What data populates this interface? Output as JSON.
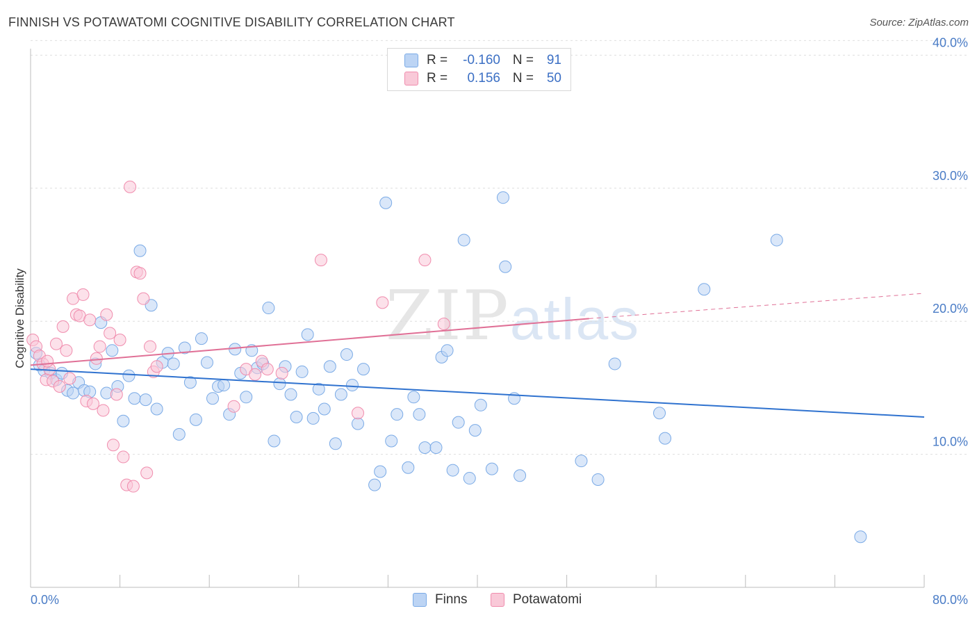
{
  "title": "FINNISH VS POTAWATOMI COGNITIVE DISABILITY CORRELATION CHART",
  "source": "Source: ZipAtlas.com",
  "watermark": {
    "zip": "ZIP",
    "atlas": "atlas"
  },
  "legend": {
    "rows": [
      {
        "r_label": "R =",
        "r_value": "-0.160",
        "n_label": "N =",
        "n_value": "91",
        "color": "#7aaae6"
      },
      {
        "r_label": "R =",
        "r_value": "0.156",
        "n_label": "N =",
        "n_value": "50",
        "color": "#f08cad"
      }
    ]
  },
  "bottom_legend": {
    "series1": "Finns",
    "series2": "Potawatomi"
  },
  "chart_data": {
    "type": "scatter",
    "title": "FINNISH VS POTAWATOMI COGNITIVE DISABILITY CORRELATION CHART",
    "xlabel": "",
    "ylabel": "Cognitive Disability",
    "xlim": [
      0,
      80
    ],
    "ylim": [
      0,
      42
    ],
    "y_ticks": [
      10,
      20,
      30,
      40
    ],
    "y_tick_labels": [
      "10.0%",
      "20.0%",
      "30.0%",
      "40.0%"
    ],
    "x_tick_labels": [
      "0.0%",
      "80.0%"
    ],
    "grid": true,
    "legend_position": "top-center",
    "series": [
      {
        "name": "Finns",
        "color": "#7aaae6",
        "trend": {
          "x": [
            0,
            80
          ],
          "y": [
            16.4,
            12.8
          ],
          "style": "solid"
        },
        "points": [
          [
            0.5,
            17.6
          ],
          [
            0.8,
            16.7
          ],
          [
            1.2,
            16.3
          ],
          [
            1.8,
            16.1
          ],
          [
            2.3,
            15.6
          ],
          [
            2.8,
            16.1
          ],
          [
            3.3,
            14.8
          ],
          [
            3.8,
            14.6
          ],
          [
            4.3,
            15.4
          ],
          [
            4.8,
            14.8
          ],
          [
            5.3,
            14.7
          ],
          [
            5.8,
            16.8
          ],
          [
            6.3,
            19.9
          ],
          [
            6.8,
            14.6
          ],
          [
            7.3,
            17.8
          ],
          [
            7.8,
            15.1
          ],
          [
            8.3,
            12.5
          ],
          [
            8.8,
            15.9
          ],
          [
            9.3,
            14.2
          ],
          [
            9.8,
            25.3
          ],
          [
            10.3,
            14.1
          ],
          [
            10.8,
            21.2
          ],
          [
            11.3,
            13.4
          ],
          [
            11.8,
            16.9
          ],
          [
            12.3,
            17.6
          ],
          [
            12.8,
            16.8
          ],
          [
            13.3,
            11.5
          ],
          [
            13.8,
            18.0
          ],
          [
            14.3,
            15.4
          ],
          [
            14.8,
            12.6
          ],
          [
            15.3,
            18.7
          ],
          [
            15.8,
            16.9
          ],
          [
            16.3,
            14.2
          ],
          [
            16.8,
            15.1
          ],
          [
            17.3,
            15.2
          ],
          [
            17.8,
            13.0
          ],
          [
            18.3,
            17.9
          ],
          [
            18.8,
            16.1
          ],
          [
            19.3,
            14.3
          ],
          [
            19.8,
            17.8
          ],
          [
            20.3,
            16.5
          ],
          [
            20.8,
            16.8
          ],
          [
            21.3,
            21.0
          ],
          [
            21.8,
            11.0
          ],
          [
            22.3,
            15.3
          ],
          [
            22.8,
            16.6
          ],
          [
            23.3,
            14.5
          ],
          [
            23.8,
            12.8
          ],
          [
            24.3,
            16.2
          ],
          [
            24.8,
            19.0
          ],
          [
            25.3,
            12.7
          ],
          [
            25.8,
            14.9
          ],
          [
            26.3,
            13.4
          ],
          [
            26.8,
            16.6
          ],
          [
            27.3,
            10.8
          ],
          [
            27.8,
            14.5
          ],
          [
            28.3,
            17.5
          ],
          [
            28.8,
            15.2
          ],
          [
            29.3,
            12.3
          ],
          [
            29.8,
            16.4
          ],
          [
            30.8,
            7.7
          ],
          [
            31.3,
            8.7
          ],
          [
            31.8,
            28.9
          ],
          [
            32.3,
            11.0
          ],
          [
            32.8,
            13.0
          ],
          [
            33.8,
            9.0
          ],
          [
            34.3,
            14.3
          ],
          [
            34.8,
            13.0
          ],
          [
            35.3,
            10.5
          ],
          [
            36.3,
            10.5
          ],
          [
            36.8,
            17.3
          ],
          [
            37.3,
            17.8
          ],
          [
            37.8,
            8.8
          ],
          [
            38.3,
            12.4
          ],
          [
            38.8,
            26.1
          ],
          [
            39.3,
            8.2
          ],
          [
            39.8,
            11.8
          ],
          [
            40.3,
            13.7
          ],
          [
            41.3,
            8.9
          ],
          [
            42.3,
            29.3
          ],
          [
            42.5,
            24.1
          ],
          [
            43.3,
            14.2
          ],
          [
            43.8,
            8.4
          ],
          [
            49.3,
            9.5
          ],
          [
            50.8,
            8.1
          ],
          [
            52.3,
            16.8
          ],
          [
            56.3,
            13.1
          ],
          [
            56.8,
            11.2
          ],
          [
            60.3,
            22.4
          ],
          [
            66.8,
            26.1
          ],
          [
            74.3,
            3.8
          ]
        ]
      },
      {
        "name": "Potawatomi",
        "color": "#f08cad",
        "trend": {
          "x": [
            0,
            50
          ],
          "y": [
            16.7,
            20.2
          ],
          "x_dashed_end": 80,
          "y_dashed_end": 22.1,
          "style": "solid-then-dashed"
        },
        "points": [
          [
            0.2,
            18.6
          ],
          [
            0.5,
            18.1
          ],
          [
            0.8,
            17.4
          ],
          [
            1.1,
            16.8
          ],
          [
            1.4,
            15.6
          ],
          [
            1.7,
            16.4
          ],
          [
            2.0,
            15.5
          ],
          [
            2.3,
            18.3
          ],
          [
            2.6,
            15.1
          ],
          [
            2.9,
            19.6
          ],
          [
            3.2,
            17.8
          ],
          [
            3.5,
            15.7
          ],
          [
            3.8,
            21.7
          ],
          [
            4.1,
            20.5
          ],
          [
            4.4,
            20.4
          ],
          [
            4.7,
            22.0
          ],
          [
            5.0,
            14.0
          ],
          [
            5.3,
            20.1
          ],
          [
            5.6,
            13.8
          ],
          [
            5.9,
            17.2
          ],
          [
            6.2,
            18.1
          ],
          [
            6.5,
            13.3
          ],
          [
            6.8,
            20.5
          ],
          [
            7.1,
            19.1
          ],
          [
            7.4,
            10.7
          ],
          [
            7.7,
            14.5
          ],
          [
            8.0,
            18.6
          ],
          [
            8.3,
            9.8
          ],
          [
            8.6,
            7.7
          ],
          [
            8.9,
            30.1
          ],
          [
            9.2,
            7.6
          ],
          [
            9.5,
            23.7
          ],
          [
            9.8,
            23.6
          ],
          [
            10.1,
            21.7
          ],
          [
            10.4,
            8.6
          ],
          [
            10.7,
            18.1
          ],
          [
            11.0,
            16.2
          ],
          [
            11.3,
            16.6
          ],
          [
            18.2,
            13.6
          ],
          [
            19.3,
            16.4
          ],
          [
            20.1,
            16.0
          ],
          [
            20.7,
            17.0
          ],
          [
            21.2,
            16.4
          ],
          [
            22.5,
            16.1
          ],
          [
            26.0,
            24.6
          ],
          [
            29.3,
            13.1
          ],
          [
            31.5,
            21.4
          ],
          [
            35.3,
            24.6
          ],
          [
            37.0,
            19.8
          ],
          [
            1.5,
            17.0
          ]
        ]
      }
    ]
  }
}
